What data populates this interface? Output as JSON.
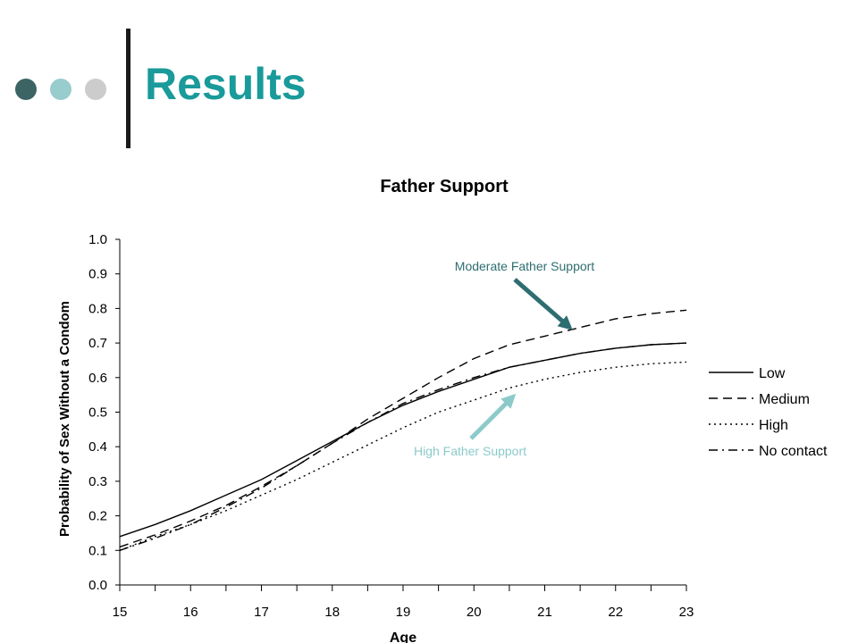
{
  "slide": {
    "title": "Results",
    "title_color": "#1a9a9a",
    "dots": [
      "#3c6464",
      "#99cccc",
      "#cccccc"
    ]
  },
  "annotations": {
    "moderate": {
      "text": "Moderate Father Support",
      "color": "#2e6d70",
      "points_to": {
        "x": 21.35,
        "y": 0.735
      }
    },
    "high": {
      "text": "High Father Support",
      "color": "#8ccaca",
      "points_to": {
        "x": 20.55,
        "y": 0.56
      }
    }
  },
  "chart_data": {
    "type": "line",
    "title": "Father Support",
    "xlabel": "Age",
    "ylabel": "Probability of Sex Without a Condom",
    "xlim": [
      15,
      23
    ],
    "ylim": [
      0,
      1
    ],
    "xticks": [
      "15",
      "16",
      "17",
      "18",
      "19",
      "20",
      "21",
      "22",
      "23"
    ],
    "yticks": [
      "0.0",
      "0.1",
      "0.2",
      "0.3",
      "0.4",
      "0.5",
      "0.6",
      "0.7",
      "0.8",
      "0.9",
      "1.0"
    ],
    "grid": false,
    "legend_position": "right",
    "x": [
      15,
      15.5,
      16,
      16.5,
      17,
      17.5,
      18,
      18.5,
      19,
      19.5,
      20,
      20.5,
      21,
      21.5,
      22,
      22.5,
      23
    ],
    "series": [
      {
        "name": "Low",
        "dash": "",
        "values": [
          0.14,
          0.175,
          0.215,
          0.26,
          0.305,
          0.36,
          0.415,
          0.47,
          0.52,
          0.56,
          0.595,
          0.63,
          0.65,
          0.67,
          0.685,
          0.695,
          0.7
        ]
      },
      {
        "name": "Medium",
        "dash": "10,6",
        "values": [
          0.11,
          0.145,
          0.185,
          0.23,
          0.285,
          0.345,
          0.41,
          0.48,
          0.54,
          0.6,
          0.655,
          0.695,
          0.72,
          0.745,
          0.77,
          0.785,
          0.795
        ]
      },
      {
        "name": "High",
        "dash": "2,4",
        "values": [
          0.1,
          0.14,
          0.175,
          0.215,
          0.26,
          0.305,
          0.355,
          0.405,
          0.455,
          0.5,
          0.535,
          0.57,
          0.595,
          0.615,
          0.63,
          0.64,
          0.645
        ]
      },
      {
        "name": "No contact",
        "dash": "10,5,2,5",
        "values": [
          0.1,
          0.135,
          0.175,
          0.225,
          0.28,
          0.345,
          0.41,
          0.47,
          0.525,
          0.565,
          0.6,
          0.63,
          0.65,
          0.67,
          0.685,
          0.695,
          0.7
        ]
      }
    ]
  }
}
